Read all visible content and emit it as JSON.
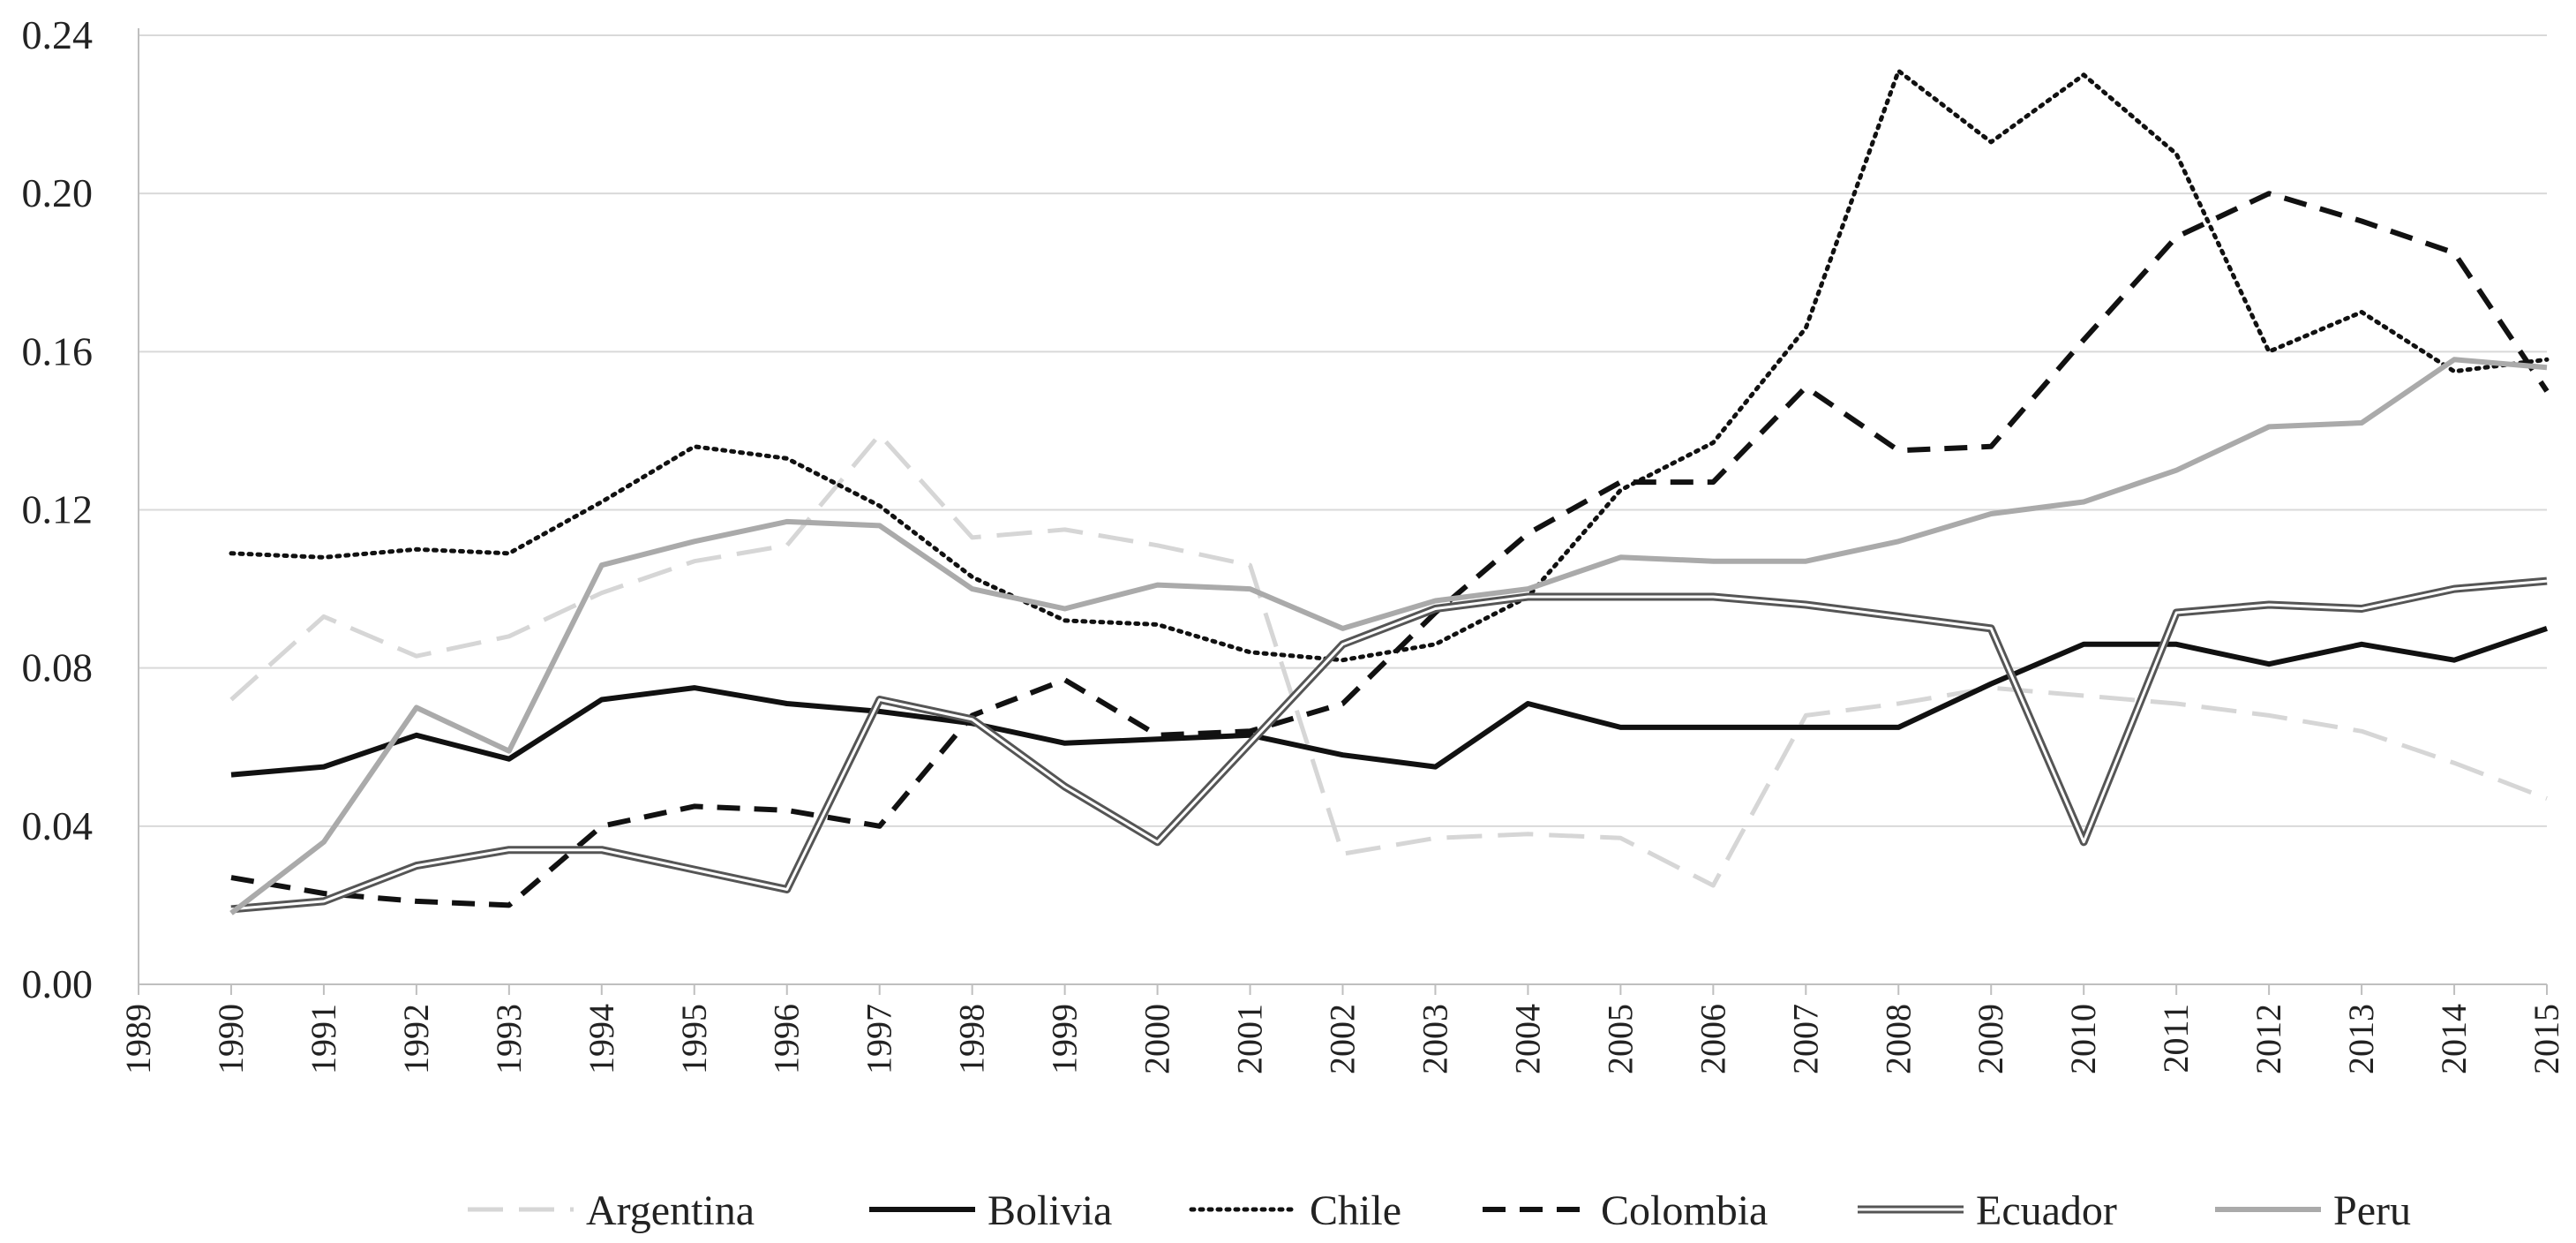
{
  "chart_data": {
    "type": "line",
    "title": "",
    "xlabel": "",
    "ylabel": "",
    "x": [
      1989,
      1990,
      1991,
      1992,
      1993,
      1994,
      1995,
      1996,
      1997,
      1998,
      1999,
      2000,
      2001,
      2002,
      2003,
      2004,
      2005,
      2006,
      2007,
      2008,
      2009,
      2010,
      2011,
      2012,
      2013,
      2014,
      2015
    ],
    "x_tick_labels": [
      "1989",
      "1990",
      "1991",
      "1992",
      "1993",
      "1994",
      "1995",
      "1996",
      "1997",
      "1998",
      "1999",
      "2000",
      "2001",
      "2002",
      "2003",
      "2004",
      "2005",
      "2006",
      "2007",
      "2008",
      "2009",
      "2010",
      "2011",
      "2012",
      "2013",
      "2014",
      "2015"
    ],
    "y_tick_labels": [
      "0.00",
      "0.04",
      "0.08",
      "0.12",
      "0.16",
      "0.20",
      "0.24"
    ],
    "y_ticks": [
      0,
      0.04,
      0.08,
      0.12,
      0.16,
      0.2,
      0.24
    ],
    "ylim": [
      0,
      0.24
    ],
    "grid": true,
    "legend_position": "bottom",
    "series": [
      {
        "name": "Argentina",
        "style": "long-dash",
        "color": "#d6d6d6",
        "x": [
          1990,
          1991,
          1992,
          1993,
          1994,
          1995,
          1996,
          1997,
          1998,
          1999,
          2000,
          2001,
          2002,
          2003,
          2004,
          2005,
          2006,
          2007,
          2008,
          2009,
          2010,
          2011,
          2012,
          2013,
          2014,
          2015
        ],
        "values": [
          0.072,
          0.093,
          0.083,
          0.088,
          0.099,
          0.107,
          0.111,
          0.139,
          0.113,
          0.115,
          0.111,
          0.106,
          0.033,
          0.037,
          0.038,
          0.037,
          0.025,
          0.068,
          0.071,
          0.075,
          0.073,
          0.071,
          0.068,
          0.064,
          0.056,
          0.047
        ]
      },
      {
        "name": "Bolivia",
        "style": "solid",
        "color": "#111111",
        "x": [
          1990,
          1991,
          1992,
          1993,
          1994,
          1995,
          1996,
          1997,
          1998,
          1999,
          2000,
          2001,
          2002,
          2003,
          2004,
          2005,
          2006,
          2007,
          2008,
          2009,
          2010,
          2011,
          2012,
          2013,
          2014,
          2015
        ],
        "values": [
          0.053,
          0.055,
          0.063,
          0.057,
          0.072,
          0.075,
          0.071,
          0.069,
          0.066,
          0.061,
          0.062,
          0.063,
          0.058,
          0.055,
          0.071,
          0.065,
          0.065,
          0.065,
          0.065,
          0.076,
          0.086,
          0.086,
          0.081,
          0.086,
          0.082,
          0.09
        ]
      },
      {
        "name": "Chile",
        "style": "dotted",
        "color": "#111111",
        "x": [
          1990,
          1991,
          1992,
          1993,
          1994,
          1995,
          1996,
          1997,
          1998,
          1999,
          2000,
          2001,
          2002,
          2003,
          2004,
          2005,
          2006,
          2007,
          2008,
          2009,
          2010,
          2011,
          2012,
          2013,
          2014,
          2015
        ],
        "values": [
          0.109,
          0.108,
          0.11,
          0.109,
          0.122,
          0.136,
          0.133,
          0.121,
          0.103,
          0.092,
          0.091,
          0.084,
          0.082,
          0.086,
          0.098,
          0.125,
          0.137,
          0.166,
          0.231,
          0.213,
          0.23,
          0.21,
          0.16,
          0.17,
          0.155,
          0.158
        ]
      },
      {
        "name": "Colombia",
        "style": "dashed",
        "color": "#111111",
        "x": [
          1990,
          1991,
          1992,
          1993,
          1994,
          1995,
          1996,
          1997,
          1998,
          1999,
          2000,
          2001,
          2002,
          2003,
          2004,
          2005,
          2006,
          2007,
          2008,
          2009,
          2010,
          2011,
          2012,
          2013,
          2014,
          2015
        ],
        "values": [
          0.027,
          0.023,
          0.021,
          0.02,
          0.04,
          0.045,
          0.044,
          0.04,
          0.068,
          0.077,
          0.063,
          0.064,
          0.071,
          0.094,
          0.114,
          0.127,
          0.127,
          0.151,
          0.135,
          0.136,
          0.163,
          0.189,
          0.2,
          0.193,
          0.185,
          0.15
        ]
      },
      {
        "name": "Ecuador",
        "style": "double",
        "color": "#555555",
        "x": [
          1990,
          1991,
          1992,
          1993,
          1994,
          1995,
          1996,
          1997,
          1998,
          1999,
          2000,
          2001,
          2002,
          2003,
          2004,
          2005,
          2006,
          2007,
          2008,
          2009,
          2010,
          2011,
          2012,
          2013,
          2014,
          2015
        ],
        "values": [
          0.019,
          0.021,
          0.03,
          0.034,
          0.034,
          0.029,
          0.024,
          0.072,
          0.067,
          0.05,
          0.036,
          0.061,
          0.086,
          0.095,
          0.098,
          0.098,
          0.098,
          0.096,
          0.093,
          0.09,
          0.036,
          0.094,
          0.096,
          0.095,
          0.1,
          0.102
        ]
      },
      {
        "name": "Peru",
        "style": "solid",
        "color": "#aaaaaa",
        "x": [
          1990,
          1991,
          1992,
          1993,
          1994,
          1995,
          1996,
          1997,
          1998,
          1999,
          2000,
          2001,
          2002,
          2003,
          2004,
          2005,
          2006,
          2007,
          2008,
          2009,
          2010,
          2011,
          2012,
          2013,
          2014,
          2015
        ],
        "values": [
          0.018,
          0.036,
          0.07,
          0.059,
          0.106,
          0.112,
          0.117,
          0.116,
          0.1,
          0.095,
          0.101,
          0.1,
          0.09,
          0.097,
          0.1,
          0.108,
          0.107,
          0.107,
          0.112,
          0.119,
          0.122,
          0.13,
          0.141,
          0.142,
          0.158,
          0.156
        ]
      }
    ]
  }
}
